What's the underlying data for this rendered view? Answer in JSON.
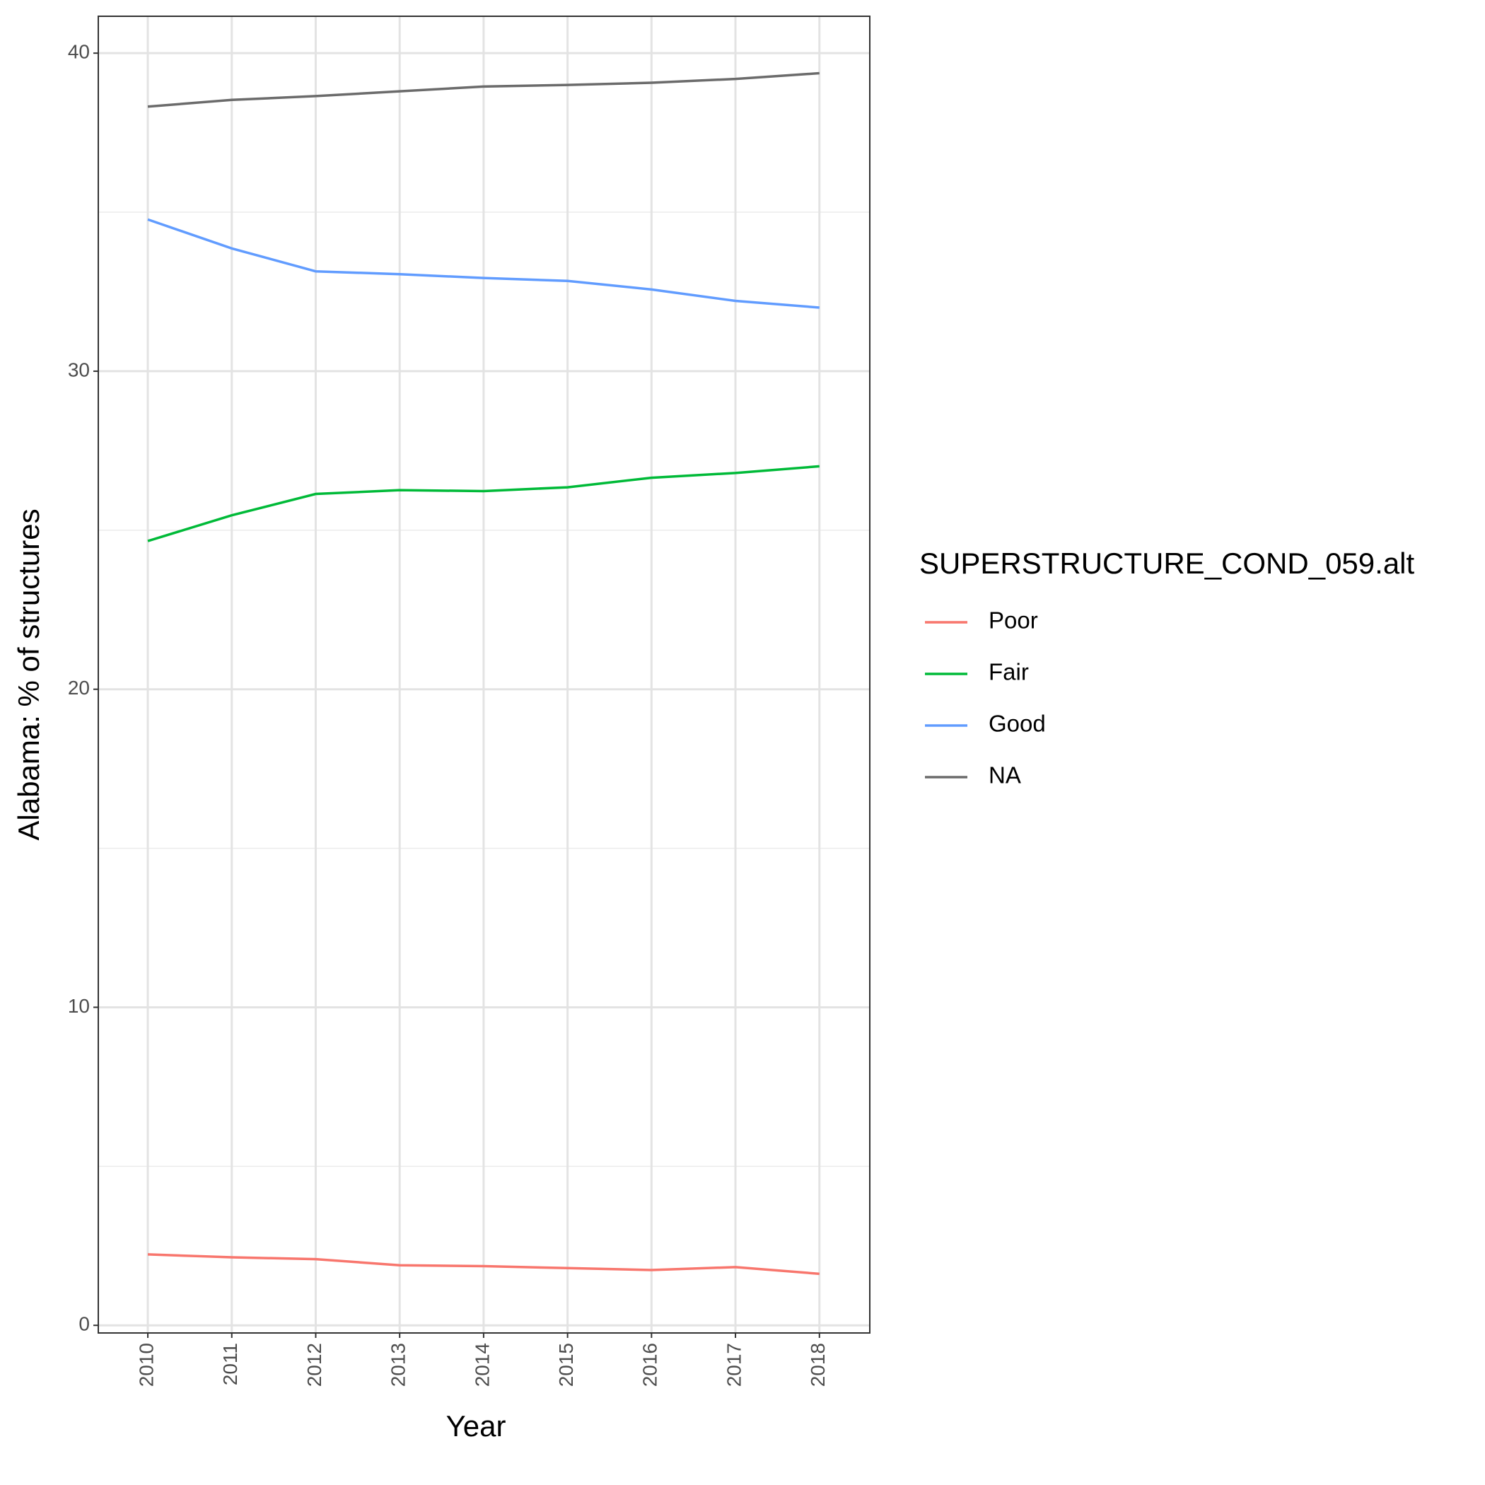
{
  "chart_data": {
    "type": "line",
    "x_label": "Year",
    "y_label": "Alabama: % of structures",
    "legend_title": "SUPERSTRUCTURE_COND_059.alt",
    "x": [
      2010,
      2011,
      2012,
      2013,
      2014,
      2015,
      2016,
      2017,
      2018
    ],
    "series": [
      {
        "name": "Poor",
        "color": "#f8766d",
        "values": [
          2.23,
          2.14,
          2.08,
          1.89,
          1.86,
          1.8,
          1.74,
          1.83,
          1.62
        ]
      },
      {
        "name": "Fair",
        "color": "#00ba38",
        "values": [
          24.66,
          25.47,
          26.14,
          26.26,
          26.23,
          26.35,
          26.65,
          26.8,
          27.01
        ]
      },
      {
        "name": "Good",
        "color": "#619cff",
        "values": [
          34.77,
          33.86,
          33.14,
          33.05,
          32.93,
          32.84,
          32.57,
          32.21,
          32.0
        ]
      },
      {
        "name": "NA",
        "color": "#6b6b6b",
        "values": [
          38.32,
          38.53,
          38.65,
          38.8,
          38.95,
          39.0,
          39.07,
          39.19,
          39.37
        ]
      }
    ],
    "xlim": [
      2009.41,
      2018.6
    ],
    "xticks": [
      2010,
      2011,
      2012,
      2013,
      2014,
      2015,
      2016,
      2017,
      2018
    ],
    "ylim": [
      -0.24,
      41.16
    ],
    "yticks": [
      0,
      10,
      20,
      30,
      40
    ],
    "grid": true,
    "minor_grid": true,
    "legend": "right"
  }
}
